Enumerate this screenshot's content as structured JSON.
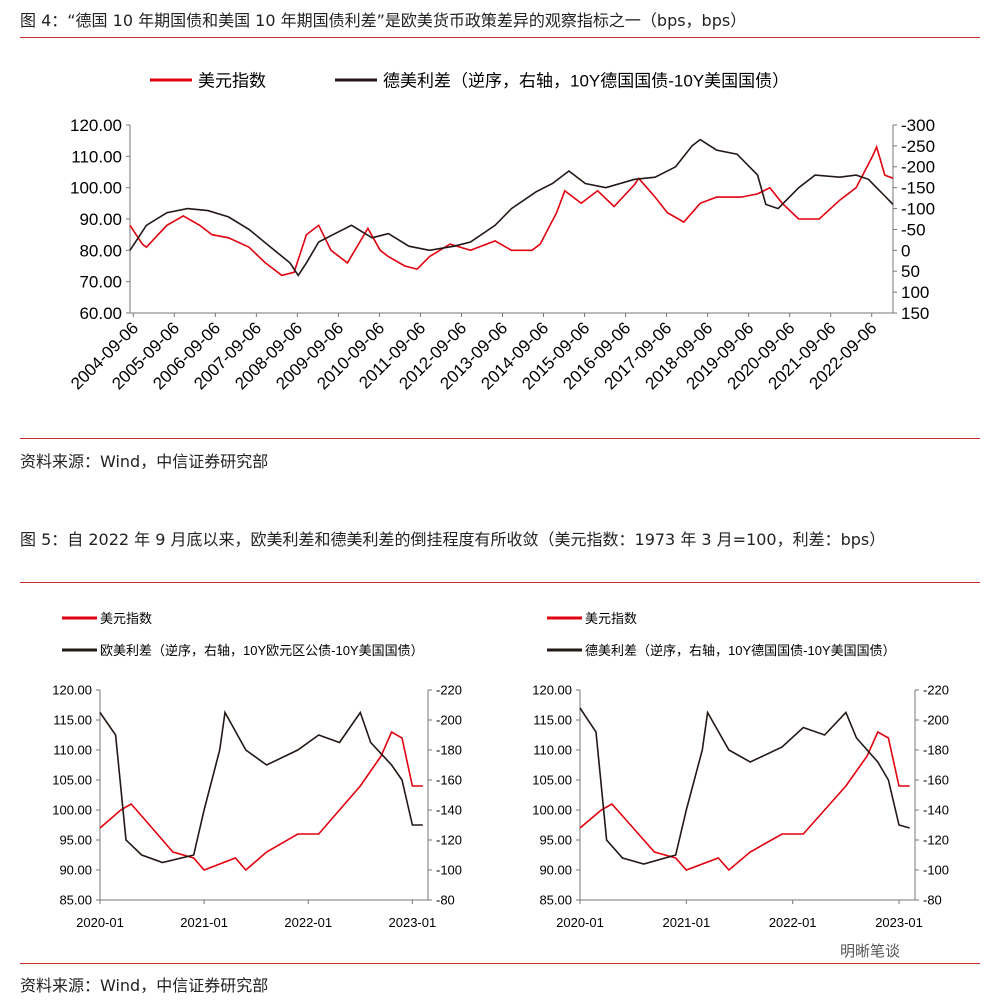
{
  "fig4": {
    "caption": "图 4：“德国 10 年期国债和美国 10 年期国债利差”是欧美货币政策差异的观察指标之一（bps，bps）",
    "source": "资料来源：Wind，中信证券研究部"
  },
  "fig5": {
    "caption": "图 5：自 2022 年 9 月底以来，欧美利差和德美利差的倒挂程度有所收敛（美元指数：1973 年 3 月=100，利差：bps）",
    "source": "资料来源：Wind，中信证券研究部"
  },
  "watermark": "明晰笔谈",
  "colors": {
    "usd": "#e3000f",
    "spread": "#231815",
    "rule": "#c9302c"
  },
  "chart_data": [
    {
      "type": "line",
      "title": "",
      "ylim": [
        60,
        120
      ],
      "y2lim": [
        150,
        -300
      ],
      "y2_reversed": true,
      "yticks": [
        "120.00",
        "110.00",
        "100.00",
        "90.00",
        "80.00",
        "70.00",
        "60.00"
      ],
      "y2ticks": [
        "-300",
        "-250",
        "-200",
        "-150",
        "-100",
        "-50",
        "0",
        "50",
        "100",
        "150"
      ],
      "xticks": [
        "2004-09-06",
        "2005-09-06",
        "2006-09-06",
        "2007-09-06",
        "2008-09-06",
        "2009-09-06",
        "2010-09-06",
        "2011-09-06",
        "2012-09-06",
        "2013-09-06",
        "2014-09-06",
        "2015-09-06",
        "2016-09-06",
        "2017-09-06",
        "2018-09-06",
        "2019-09-06",
        "2020-09-06",
        "2021-09-06",
        "2022-09-06"
      ],
      "xrange": [
        2004.6,
        2023.2
      ],
      "series": [
        {
          "name": "美元指数",
          "axis": "left",
          "x": [
            2004.6,
            2004.9,
            2005.0,
            2005.5,
            2005.9,
            2006.3,
            2006.6,
            2007.0,
            2007.5,
            2007.9,
            2008.3,
            2008.6,
            2008.9,
            2009.2,
            2009.5,
            2009.9,
            2010.4,
            2010.7,
            2010.9,
            2011.3,
            2011.6,
            2011.9,
            2012.4,
            2012.9,
            2013.5,
            2013.9,
            2014.4,
            2014.6,
            2015.0,
            2015.2,
            2015.6,
            2016.0,
            2016.4,
            2016.9,
            2017.0,
            2017.4,
            2017.7,
            2018.1,
            2018.5,
            2018.9,
            2019.5,
            2019.9,
            2020.2,
            2020.5,
            2020.9,
            2021.4,
            2021.9,
            2022.3,
            2022.7,
            2022.8,
            2023.0,
            2023.2
          ],
          "y": [
            88,
            82,
            81,
            88,
            91,
            88,
            85,
            84,
            81,
            76,
            72,
            73,
            85,
            88,
            80,
            76,
            87,
            80,
            78,
            75,
            74,
            78,
            82,
            80,
            83,
            80,
            80,
            82,
            92,
            99,
            95,
            99,
            94,
            101,
            103,
            97,
            92,
            89,
            95,
            97,
            97,
            98,
            100,
            95,
            90,
            90,
            96,
            100,
            110,
            113,
            104,
            103
          ]
        },
        {
          "name": "德美利差（逆序，右轴，10Y德国国债-10Y美国国债）",
          "axis": "right",
          "x": [
            2004.6,
            2005.0,
            2005.5,
            2006.0,
            2006.5,
            2007.0,
            2007.5,
            2008.0,
            2008.5,
            2008.7,
            2008.9,
            2009.2,
            2009.6,
            2010.0,
            2010.5,
            2010.9,
            2011.4,
            2011.9,
            2012.5,
            2012.9,
            2013.5,
            2013.9,
            2014.5,
            2014.9,
            2015.3,
            2015.7,
            2016.2,
            2016.9,
            2017.4,
            2017.9,
            2018.3,
            2018.5,
            2018.9,
            2019.4,
            2019.9,
            2020.1,
            2020.4,
            2020.9,
            2021.3,
            2021.9,
            2022.3,
            2022.6,
            2022.8,
            2023.0,
            2023.2
          ],
          "y": [
            0,
            -60,
            -90,
            -100,
            -95,
            -80,
            -50,
            -10,
            30,
            60,
            30,
            -20,
            -40,
            -60,
            -30,
            -40,
            -10,
            0,
            -10,
            -20,
            -60,
            -100,
            -140,
            -160,
            -190,
            -160,
            -150,
            -170,
            -175,
            -200,
            -250,
            -265,
            -240,
            -230,
            -180,
            -110,
            -100,
            -150,
            -180,
            -175,
            -180,
            -170,
            -150,
            -130,
            -110
          ]
        }
      ]
    },
    {
      "type": "line",
      "title": "",
      "ylim": [
        85,
        120
      ],
      "y2lim": [
        -80,
        -220
      ],
      "y2_reversed": true,
      "yticks": [
        "120.00",
        "115.00",
        "110.00",
        "105.00",
        "100.00",
        "95.00",
        "90.00",
        "85.00"
      ],
      "y2ticks": [
        "-220",
        "-200",
        "-180",
        "-160",
        "-140",
        "-120",
        "-100",
        "-80"
      ],
      "xticks": [
        "2020-01",
        "2021-01",
        "2022-01",
        "2023-01"
      ],
      "xrange": [
        2020.0,
        2023.15
      ],
      "series": [
        {
          "name": "美元指数",
          "axis": "left",
          "x": [
            2020.0,
            2020.2,
            2020.3,
            2020.5,
            2020.7,
            2020.9,
            2021.0,
            2021.3,
            2021.4,
            2021.6,
            2021.9,
            2022.1,
            2022.3,
            2022.5,
            2022.7,
            2022.8,
            2022.9,
            2023.0,
            2023.1
          ],
          "y": [
            97,
            100,
            101,
            97,
            93,
            92,
            90,
            92,
            90,
            93,
            96,
            96,
            100,
            104,
            109,
            113,
            112,
            104,
            104
          ]
        },
        {
          "name": "欧美利差（逆序，右轴，10Y欧元区公债-10Y美国国债）",
          "axis": "right",
          "x": [
            2020.0,
            2020.15,
            2020.25,
            2020.4,
            2020.6,
            2020.9,
            2021.0,
            2021.15,
            2021.2,
            2021.4,
            2021.6,
            2021.9,
            2022.1,
            2022.3,
            2022.5,
            2022.6,
            2022.8,
            2022.9,
            2023.0,
            2023.1
          ],
          "y": [
            -205,
            -190,
            -120,
            -110,
            -105,
            -110,
            -140,
            -180,
            -205,
            -180,
            -170,
            -180,
            -190,
            -185,
            -205,
            -185,
            -170,
            -160,
            -130,
            -130
          ]
        }
      ]
    },
    {
      "type": "line",
      "title": "",
      "ylim": [
        85,
        120
      ],
      "y2lim": [
        -80,
        -220
      ],
      "y2_reversed": true,
      "yticks": [
        "120.00",
        "115.00",
        "110.00",
        "105.00",
        "100.00",
        "95.00",
        "90.00",
        "85.00"
      ],
      "y2ticks": [
        "-220",
        "-200",
        "-180",
        "-160",
        "-140",
        "-120",
        "-100",
        "-80"
      ],
      "xticks": [
        "2020-01",
        "2021-01",
        "2022-01",
        "2023-01"
      ],
      "xrange": [
        2020.0,
        2023.15
      ],
      "series": [
        {
          "name": "美元指数",
          "axis": "left",
          "x": [
            2020.0,
            2020.2,
            2020.3,
            2020.5,
            2020.7,
            2020.9,
            2021.0,
            2021.3,
            2021.4,
            2021.6,
            2021.9,
            2022.1,
            2022.3,
            2022.5,
            2022.7,
            2022.8,
            2022.9,
            2023.0,
            2023.1
          ],
          "y": [
            97,
            100,
            101,
            97,
            93,
            92,
            90,
            92,
            90,
            93,
            96,
            96,
            100,
            104,
            109,
            113,
            112,
            104,
            104
          ]
        },
        {
          "name": "德美利差（逆序，右轴，10Y德国国债-10Y美国国债）",
          "axis": "right",
          "x": [
            2020.0,
            2020.15,
            2020.25,
            2020.4,
            2020.6,
            2020.9,
            2021.0,
            2021.15,
            2021.2,
            2021.4,
            2021.6,
            2021.9,
            2022.1,
            2022.3,
            2022.5,
            2022.6,
            2022.8,
            2022.9,
            2023.0,
            2023.1
          ],
          "y": [
            -208,
            -192,
            -120,
            -108,
            -104,
            -110,
            -140,
            -180,
            -205,
            -180,
            -172,
            -182,
            -195,
            -190,
            -205,
            -188,
            -172,
            -160,
            -130,
            -128
          ]
        }
      ]
    }
  ]
}
